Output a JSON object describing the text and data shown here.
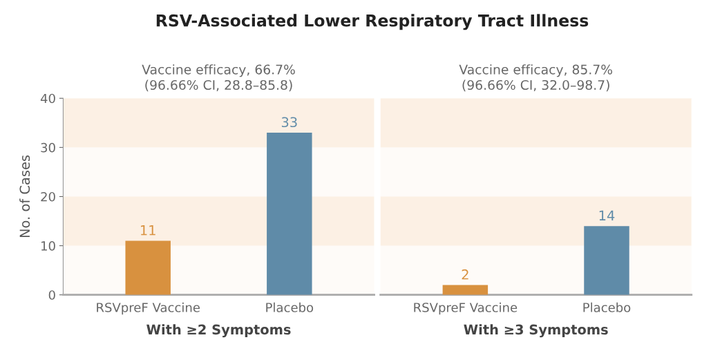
{
  "chart_data": [
    {
      "type": "bar",
      "title": "RSV-Associated Lower Respiratory Tract Illness",
      "subtitle": "Vaccine efficacy, 66.7%\n(96.66% CI, 28.8–85.8)",
      "xlabel": "With ≥2 Symptoms",
      "ylabel": "No. of Cases",
      "categories": [
        "RSVpreF Vaccine",
        "Placebo"
      ],
      "values": [
        11,
        33
      ],
      "colors": [
        "#d8913f",
        "#5f8ba8"
      ],
      "data_labels": true,
      "ylim": [
        0,
        40
      ],
      "yticks": [
        0,
        10,
        20,
        30,
        40
      ],
      "grid": false,
      "bands": [
        {
          "axis": "y",
          "from": 10,
          "to": 20,
          "color": "#fcf0e4"
        },
        {
          "axis": "y",
          "from": 30,
          "to": 40,
          "color": "#fcf0e4"
        }
      ]
    },
    {
      "type": "bar",
      "subtitle": "Vaccine efficacy, 85.7%\n(96.66% CI, 32.0–98.7)",
      "xlabel": "With ≥3 Symptoms",
      "categories": [
        "RSVpreF Vaccine",
        "Placebo"
      ],
      "values": [
        2,
        14
      ],
      "colors": [
        "#d8913f",
        "#5f8ba8"
      ],
      "data_labels": true,
      "ylim": [
        0,
        40
      ],
      "tick_labels": "x",
      "grid": false,
      "bands": [
        {
          "axis": "y",
          "from": 10,
          "to": 20,
          "color": "#fcf0e4"
        },
        {
          "axis": "y",
          "from": 30,
          "to": 40,
          "color": "#fcf0e4"
        }
      ]
    }
  ]
}
